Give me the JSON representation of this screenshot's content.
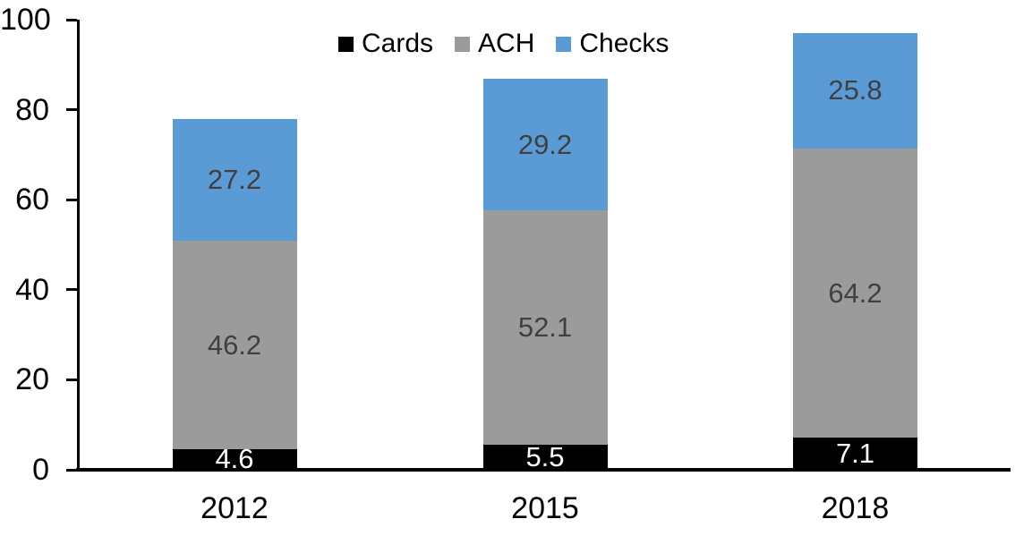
{
  "chart_data": {
    "type": "bar",
    "stacked": true,
    "title": "",
    "xlabel": "",
    "ylabel": "",
    "categories": [
      "2012",
      "2015",
      "2018"
    ],
    "series": [
      {
        "name": "Cards",
        "color": "#000000",
        "label_color": "#ffffff",
        "values": [
          4.6,
          5.5,
          7.1
        ]
      },
      {
        "name": "ACH",
        "color": "#9b9b9b",
        "label_color": "#404040",
        "values": [
          46.2,
          52.1,
          64.2
        ]
      },
      {
        "name": "Checks",
        "color": "#5b9bd5",
        "label_color": "#404040",
        "values": [
          27.2,
          29.2,
          25.8
        ]
      }
    ],
    "totals": [
      78.0,
      86.8,
      97.1
    ],
    "ylim": [
      0,
      100
    ],
    "yticks": [
      0,
      20,
      40,
      60,
      80,
      100
    ],
    "grid": false,
    "legend_position": "top-center",
    "legend_order": [
      "Cards",
      "ACH",
      "Checks"
    ],
    "axis_color": "#000000",
    "background_color": "#ffffff"
  }
}
